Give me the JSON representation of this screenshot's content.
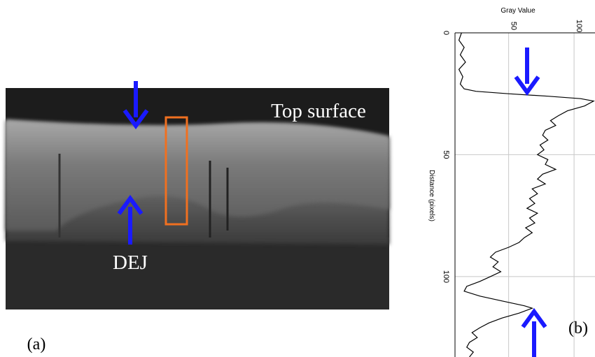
{
  "figure_a": {
    "top_label": "Top surface",
    "bottom_label": "DEJ",
    "panel_label": "(a)"
  },
  "chart_data": {
    "type": "line",
    "ylabel": "Gray Value",
    "xlabel": "Distance (pixels)",
    "panel_label": "(b)",
    "xlim": [
      0,
      133
    ],
    "xticks": [
      0,
      50,
      100
    ],
    "ylim": [
      9,
      116
    ],
    "yticks": [
      50,
      100
    ],
    "grid": true,
    "color": "#000000",
    "x": [
      0,
      3,
      6,
      9,
      12,
      15,
      18,
      21,
      23,
      24,
      25,
      26,
      27,
      28,
      30,
      32,
      34,
      36,
      38,
      40,
      42,
      44,
      46,
      48,
      50,
      52,
      54,
      56,
      58,
      60,
      62,
      64,
      66,
      68,
      70,
      72,
      74,
      76,
      78,
      80,
      82,
      84,
      86,
      88,
      90,
      92,
      94,
      96,
      98,
      100,
      102,
      104,
      106,
      108,
      110,
      112,
      113,
      115,
      117,
      119,
      121,
      123,
      125,
      127,
      129,
      131,
      133
    ],
    "values": [
      14,
      12,
      16,
      13,
      17,
      12,
      15,
      13,
      16,
      25,
      50,
      80,
      105,
      115,
      108,
      95,
      88,
      82,
      86,
      78,
      76,
      80,
      74,
      77,
      72,
      80,
      78,
      86,
      76,
      72,
      78,
      68,
      72,
      66,
      70,
      64,
      72,
      66,
      70,
      63,
      68,
      62,
      58,
      50,
      40,
      36,
      42,
      38,
      44,
      36,
      28,
      18,
      16,
      28,
      45,
      62,
      68,
      58,
      45,
      35,
      28,
      22,
      26,
      20,
      18,
      23,
      20
    ]
  }
}
